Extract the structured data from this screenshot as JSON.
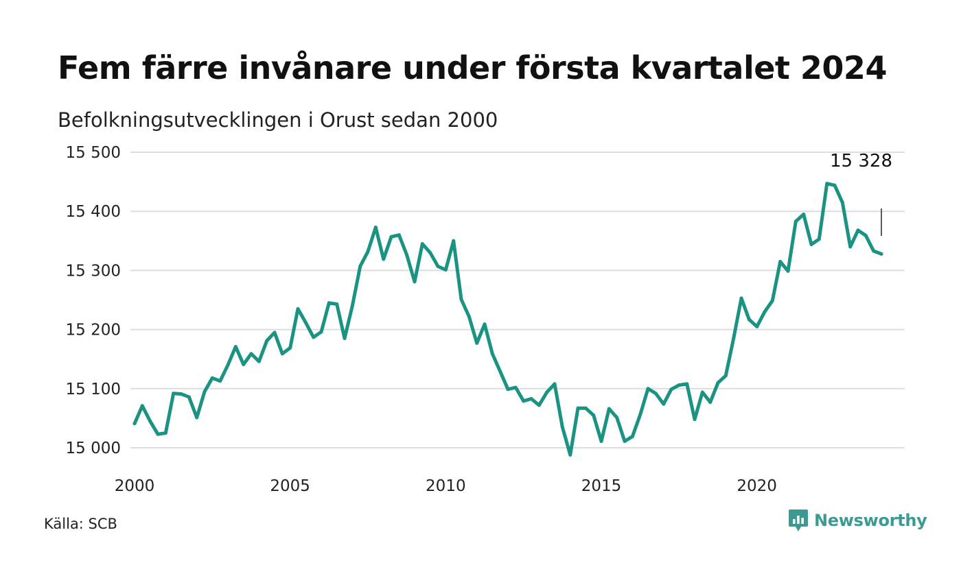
{
  "header": {
    "title": "Fem färre invånare under första kvartalet 2024",
    "subtitle": "Befolkningsutvecklingen i Orust sedan 2000"
  },
  "footer": {
    "source": "Källa: SCB",
    "brand": "Newsworthy",
    "brand_icon": "newsworthy-logo-icon"
  },
  "colors": {
    "line": "#1a9383",
    "grid": "#dddddd",
    "brand": "#3d9a92"
  },
  "chart_data": {
    "type": "line",
    "title": "Fem färre invånare under första kvartalet 2024",
    "subtitle": "Befolkningsutvecklingen i Orust sedan 2000",
    "xlabel": "",
    "ylabel": "",
    "xlim": [
      2000,
      2024.25
    ],
    "ylim": [
      15000,
      15500
    ],
    "x_ticks": [
      2000,
      2005,
      2010,
      2015,
      2020
    ],
    "x_tick_labels": [
      "2000",
      "2005",
      "2010",
      "2015",
      "2020"
    ],
    "y_ticks": [
      15000,
      15100,
      15200,
      15300,
      15400,
      15500
    ],
    "y_tick_labels": [
      "15 000",
      "15 100",
      "15 200",
      "15 300",
      "15 400",
      "15 500"
    ],
    "grid": "horizontal",
    "annotation": {
      "label": "15 328",
      "x": 2024.0,
      "value": 15328
    },
    "series": [
      {
        "x_start": 2000.0,
        "x_step": 0.25,
        "values": [
          15041,
          15071,
          15045,
          15023,
          15025,
          15092,
          15091,
          15086,
          15051,
          15095,
          15118,
          15113,
          15140,
          15171,
          15141,
          15159,
          15146,
          15181,
          15195,
          15159,
          15169,
          15235,
          15212,
          15187,
          15196,
          15245,
          15243,
          15185,
          15240,
          15307,
          15332,
          15373,
          15319,
          15357,
          15360,
          15326,
          15281,
          15345,
          15330,
          15307,
          15301,
          15350,
          15251,
          15222,
          15177,
          15209,
          15159,
          15129,
          15099,
          15102,
          15079,
          15083,
          15072,
          15094,
          15108,
          15035,
          14988,
          15067,
          15067,
          15055,
          15011,
          15066,
          15051,
          15011,
          15019,
          15056,
          15100,
          15092,
          15074,
          15099,
          15106,
          15108,
          15048,
          15094,
          15077,
          15110,
          15122,
          15185,
          15253,
          15217,
          15205,
          15230,
          15249,
          15315,
          15299,
          15383,
          15395,
          15344,
          15353,
          15447,
          15444,
          15415,
          15340,
          15368,
          15359,
          15333,
          15328
        ]
      }
    ]
  }
}
